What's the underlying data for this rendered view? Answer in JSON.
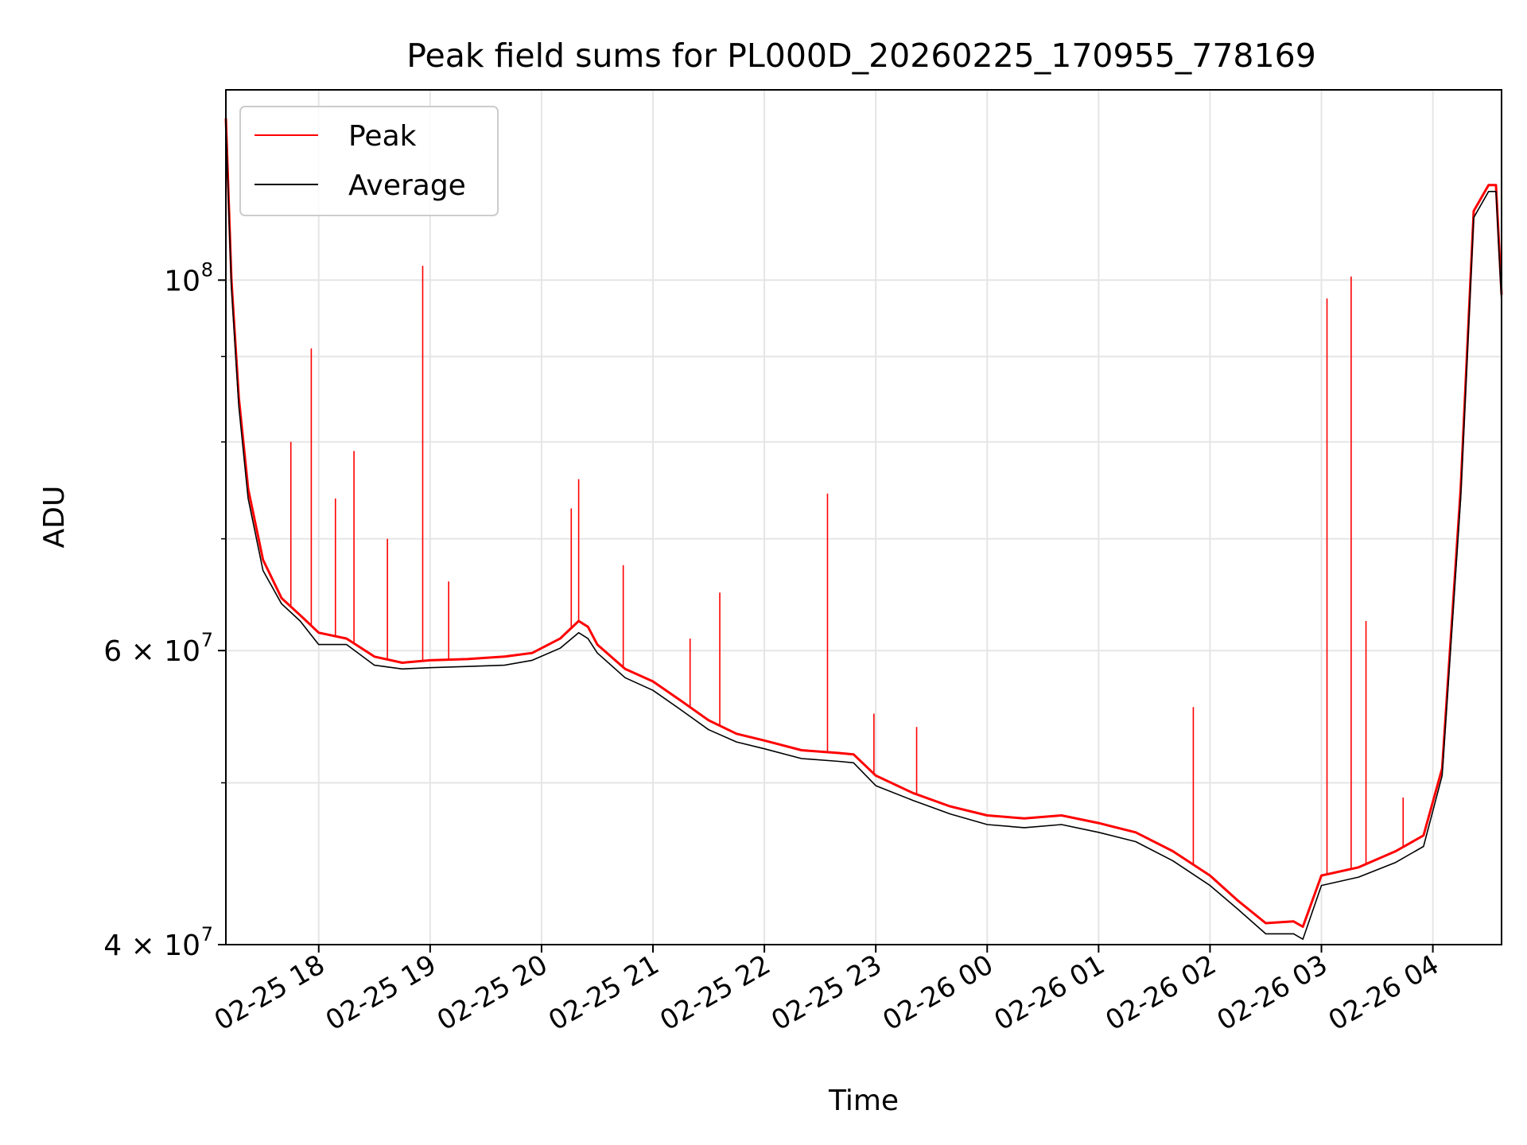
{
  "chart_data": {
    "type": "line",
    "title": "Peak field sums for PL000D_20260225_170955_778169",
    "xlabel": "Time",
    "ylabel": "ADU",
    "yscale": "log",
    "ylim": [
      40000000,
      130000000
    ],
    "xlim": [
      "2026-02-25 17:10",
      "2026-02-26 04:37"
    ],
    "grid": true,
    "legend_position": "top-left",
    "x_ticks": [
      "02-25 18",
      "02-25 19",
      "02-25 20",
      "02-25 21",
      "02-25 22",
      "02-25 23",
      "02-26 00",
      "02-26 01",
      "02-26 02",
      "02-26 03",
      "02-26 04"
    ],
    "y_ticks": [
      {
        "value": 40000000,
        "label": "4 × 10",
        "exp": "7"
      },
      {
        "value": 60000000,
        "label": "6 × 10",
        "exp": "7"
      },
      {
        "value": 100000000,
        "label": "10",
        "exp": "8"
      }
    ],
    "y_minor_ticks": [
      50000000,
      70000000,
      80000000,
      90000000
    ],
    "series": [
      {
        "name": "Peak",
        "color": "#ff0000",
        "x": [
          "2026-02-25 17:10",
          "2026-02-25 17:13",
          "2026-02-25 17:17",
          "2026-02-25 17:22",
          "2026-02-25 17:30",
          "2026-02-25 17:40",
          "2026-02-25 17:50",
          "2026-02-25 18:00",
          "2026-02-25 18:15",
          "2026-02-25 18:30",
          "2026-02-25 18:45",
          "2026-02-25 19:00",
          "2026-02-25 19:20",
          "2026-02-25 19:40",
          "2026-02-25 19:55",
          "2026-02-25 20:10",
          "2026-02-25 20:20",
          "2026-02-25 20:25",
          "2026-02-25 20:30",
          "2026-02-25 20:45",
          "2026-02-25 21:00",
          "2026-02-25 21:15",
          "2026-02-25 21:30",
          "2026-02-25 21:45",
          "2026-02-25 22:00",
          "2026-02-25 22:20",
          "2026-02-25 22:40",
          "2026-02-25 22:48",
          "2026-02-25 23:00",
          "2026-02-25 23:20",
          "2026-02-25 23:40",
          "2026-02-26 00:00",
          "2026-02-26 00:20",
          "2026-02-26 00:40",
          "2026-02-26 01:00",
          "2026-02-26 01:20",
          "2026-02-26 01:40",
          "2026-02-26 02:00",
          "2026-02-26 02:15",
          "2026-02-26 02:30",
          "2026-02-26 02:45",
          "2026-02-26 02:50",
          "2026-02-26 03:00",
          "2026-02-26 03:20",
          "2026-02-26 03:40",
          "2026-02-26 03:55",
          "2026-02-26 04:05",
          "2026-02-26 04:15",
          "2026-02-26 04:22",
          "2026-02-26 04:30",
          "2026-02-26 04:34",
          "2026-02-26 04:37"
        ],
        "values": [
          125000000,
          100000000,
          85000000,
          75000000,
          68000000,
          64500000,
          63000000,
          61500000,
          61000000,
          59500000,
          59000000,
          59200000,
          59300000,
          59500000,
          59800000,
          61000000,
          62500000,
          62000000,
          60500000,
          58500000,
          57500000,
          56000000,
          54500000,
          53500000,
          53000000,
          52300000,
          52100000,
          52000000,
          50500000,
          49300000,
          48400000,
          47800000,
          47600000,
          47800000,
          47300000,
          46700000,
          45500000,
          44000000,
          42500000,
          41200000,
          41300000,
          41000000,
          44000000,
          44500000,
          45500000,
          46500000,
          51000000,
          75000000,
          110000000,
          114000000,
          114000000,
          98000000
        ]
      },
      {
        "name": "Average",
        "color": "#000000",
        "x": [
          "2026-02-25 17:10",
          "2026-02-25 17:13",
          "2026-02-25 17:17",
          "2026-02-25 17:22",
          "2026-02-25 17:30",
          "2026-02-25 17:40",
          "2026-02-25 17:50",
          "2026-02-25 18:00",
          "2026-02-25 18:15",
          "2026-02-25 18:30",
          "2026-02-25 18:45",
          "2026-02-25 19:00",
          "2026-02-25 19:20",
          "2026-02-25 19:40",
          "2026-02-25 19:55",
          "2026-02-25 20:10",
          "2026-02-25 20:20",
          "2026-02-25 20:25",
          "2026-02-25 20:30",
          "2026-02-25 20:45",
          "2026-02-25 21:00",
          "2026-02-25 21:15",
          "2026-02-25 21:30",
          "2026-02-25 21:45",
          "2026-02-25 22:00",
          "2026-02-25 22:20",
          "2026-02-25 22:40",
          "2026-02-25 22:48",
          "2026-02-25 23:00",
          "2026-02-25 23:20",
          "2026-02-25 23:40",
          "2026-02-26 00:00",
          "2026-02-26 00:20",
          "2026-02-26 00:40",
          "2026-02-26 01:00",
          "2026-02-26 01:20",
          "2026-02-26 01:40",
          "2026-02-26 02:00",
          "2026-02-26 02:15",
          "2026-02-26 02:30",
          "2026-02-26 02:45",
          "2026-02-26 02:50",
          "2026-02-26 03:00",
          "2026-02-26 03:20",
          "2026-02-26 03:40",
          "2026-02-26 03:55",
          "2026-02-26 04:05",
          "2026-02-26 04:15",
          "2026-02-26 04:22",
          "2026-02-26 04:30",
          "2026-02-26 04:34",
          "2026-02-26 04:37"
        ],
        "values": [
          124000000,
          99000000,
          84000000,
          74000000,
          67000000,
          64000000,
          62500000,
          60500000,
          60500000,
          58800000,
          58500000,
          58600000,
          58700000,
          58800000,
          59200000,
          60200000,
          61500000,
          61000000,
          59800000,
          57800000,
          56800000,
          55300000,
          53800000,
          52900000,
          52400000,
          51700000,
          51500000,
          51400000,
          49800000,
          48800000,
          47900000,
          47200000,
          47000000,
          47200000,
          46700000,
          46100000,
          44900000,
          43400000,
          42000000,
          40600000,
          40600000,
          40300000,
          43400000,
          43900000,
          44800000,
          45800000,
          50500000,
          74000000,
          109000000,
          113000000,
          113000000,
          97000000
        ]
      }
    ],
    "peak_spikes": [
      {
        "x": "2026-02-25 17:45",
        "value": 80000000
      },
      {
        "x": "2026-02-25 17:56",
        "value": 91000000
      },
      {
        "x": "2026-02-25 18:09",
        "value": 74000000
      },
      {
        "x": "2026-02-25 18:19",
        "value": 79000000
      },
      {
        "x": "2026-02-25 18:37",
        "value": 70000000
      },
      {
        "x": "2026-02-25 18:56",
        "value": 102000000
      },
      {
        "x": "2026-02-25 19:10",
        "value": 66000000
      },
      {
        "x": "2026-02-25 20:16",
        "value": 73000000
      },
      {
        "x": "2026-02-25 20:20",
        "value": 76000000
      },
      {
        "x": "2026-02-25 20:44",
        "value": 67500000
      },
      {
        "x": "2026-02-25 21:20",
        "value": 61000000
      },
      {
        "x": "2026-02-25 21:36",
        "value": 65000000
      },
      {
        "x": "2026-02-25 22:34",
        "value": 74500000
      },
      {
        "x": "2026-02-25 22:59",
        "value": 55000000
      },
      {
        "x": "2026-02-25 23:22",
        "value": 54000000
      },
      {
        "x": "2026-02-26 01:51",
        "value": 55500000
      },
      {
        "x": "2026-02-26 03:03",
        "value": 97500000
      },
      {
        "x": "2026-02-26 03:16",
        "value": 100500000
      },
      {
        "x": "2026-02-26 03:24",
        "value": 62500000
      },
      {
        "x": "2026-02-26 03:44",
        "value": 49000000
      }
    ]
  }
}
